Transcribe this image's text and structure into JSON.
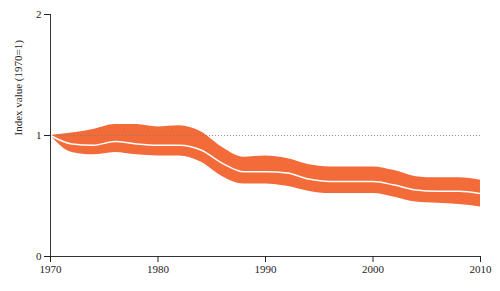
{
  "chart_data": {
    "type": "line",
    "y_label": "Index value (1970=1)",
    "x": [
      1970,
      1972,
      1974,
      1976,
      1978,
      1980,
      1982,
      1984,
      1986,
      1988,
      1990,
      1992,
      1994,
      1996,
      1998,
      2000,
      2002,
      2004,
      2006,
      2008,
      2010
    ],
    "values": [
      1.0,
      0.93,
      0.92,
      0.95,
      0.93,
      0.92,
      0.92,
      0.88,
      0.77,
      0.7,
      0.7,
      0.69,
      0.64,
      0.62,
      0.62,
      0.62,
      0.59,
      0.55,
      0.54,
      0.54,
      0.52
    ],
    "color": "#ffffff",
    "band": {
      "lower": [
        1.0,
        0.86,
        0.84,
        0.86,
        0.84,
        0.83,
        0.83,
        0.78,
        0.66,
        0.6,
        0.6,
        0.58,
        0.54,
        0.52,
        0.52,
        0.52,
        0.49,
        0.45,
        0.44,
        0.43,
        0.41
      ],
      "upper": [
        1.0,
        1.02,
        1.05,
        1.09,
        1.09,
        1.07,
        1.08,
        1.03,
        0.9,
        0.82,
        0.83,
        0.81,
        0.76,
        0.74,
        0.74,
        0.74,
        0.71,
        0.66,
        0.65,
        0.65,
        0.63
      ],
      "color": "#f26b38"
    },
    "baseline": 1,
    "xlim": [
      1970,
      2010
    ],
    "xticks": [
      1970,
      1980,
      1990,
      2000,
      2010
    ],
    "ylim": [
      0,
      2
    ],
    "yticks": [
      0,
      1,
      2
    ],
    "grid": false
  }
}
